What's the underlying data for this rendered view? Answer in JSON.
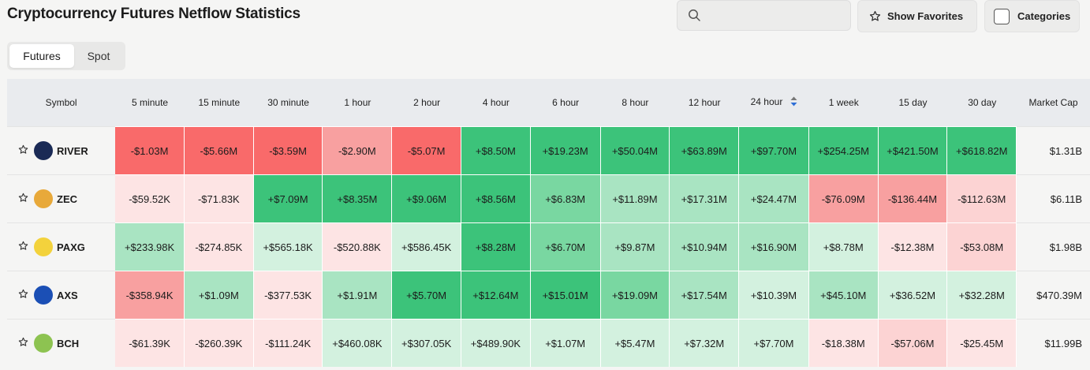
{
  "title": "Cryptocurrency Futures Netflow Statistics",
  "search": {
    "placeholder": ""
  },
  "buttons": {
    "favorites": "Show Favorites",
    "categories": "Categories"
  },
  "tabs": [
    {
      "label": "Futures"
    },
    {
      "label": "Spot"
    }
  ],
  "columns": [
    "Symbol",
    "5 minute",
    "15 minute",
    "30 minute",
    "1 hour",
    "2 hour",
    "4 hour",
    "6 hour",
    "8 hour",
    "12 hour",
    "24 hour",
    "1 week",
    "15 day",
    "30 day",
    "Market Cap"
  ],
  "rows": [
    {
      "symbol": "RIVER",
      "logo_color": "#1a2a55",
      "market_cap": "$1.31B",
      "values": [
        "-$1.03M",
        "-$5.66M",
        "-$3.59M",
        "-$2.90M",
        "-$5.07M",
        "+$8.50M",
        "+$19.23M",
        "+$50.04M",
        "+$63.89M",
        "+$97.70M",
        "+$254.25M",
        "+$421.50M",
        "+$618.82M"
      ],
      "tones": [
        "r1",
        "r1",
        "r1",
        "r2",
        "r1",
        "g1",
        "g1",
        "g1",
        "g1",
        "g1",
        "g1",
        "g1",
        "g1"
      ]
    },
    {
      "symbol": "ZEC",
      "logo_color": "#e8a93a",
      "market_cap": "$6.11B",
      "values": [
        "-$59.52K",
        "-$71.83K",
        "+$7.09M",
        "+$8.35M",
        "+$9.06M",
        "+$8.56M",
        "+$6.83M",
        "+$11.89M",
        "+$17.31M",
        "+$24.47M",
        "-$76.09M",
        "-$136.44M",
        "-$112.63M"
      ],
      "tones": [
        "r4",
        "r4",
        "g1",
        "g1",
        "g1",
        "g1",
        "g2",
        "g3",
        "g3",
        "g3",
        "r2",
        "r2",
        "r3"
      ]
    },
    {
      "symbol": "PAXG",
      "logo_color": "#f3d23c",
      "market_cap": "$1.98B",
      "values": [
        "+$233.98K",
        "-$274.85K",
        "+$565.18K",
        "-$520.88K",
        "+$586.45K",
        "+$8.28M",
        "+$6.70M",
        "+$9.87M",
        "+$10.94M",
        "+$16.90M",
        "+$8.78M",
        "-$12.38M",
        "-$53.08M"
      ],
      "tones": [
        "g3",
        "r4",
        "g4",
        "r4",
        "g4",
        "g1",
        "g2",
        "g3",
        "g3",
        "g3",
        "g4",
        "r4",
        "r3"
      ]
    },
    {
      "symbol": "AXS",
      "logo_color": "#1b4fb5",
      "market_cap": "$470.39M",
      "values": [
        "-$358.94K",
        "+$1.09M",
        "-$377.53K",
        "+$1.91M",
        "+$5.70M",
        "+$12.64M",
        "+$15.01M",
        "+$19.09M",
        "+$17.54M",
        "+$10.39M",
        "+$45.10M",
        "+$36.52M",
        "+$32.28M"
      ],
      "tones": [
        "r2",
        "g3",
        "r4",
        "g3",
        "g1",
        "g1",
        "g1",
        "g2",
        "g3",
        "g4",
        "g3",
        "g4",
        "g4"
      ]
    },
    {
      "symbol": "BCH",
      "logo_color": "#8dc351",
      "market_cap": "$11.99B",
      "values": [
        "-$61.39K",
        "-$260.39K",
        "-$111.24K",
        "+$460.08K",
        "+$307.05K",
        "+$489.90K",
        "+$1.07M",
        "+$5.47M",
        "+$7.32M",
        "+$7.70M",
        "-$18.38M",
        "-$57.06M",
        "-$25.45M"
      ],
      "tones": [
        "r4",
        "r4",
        "r4",
        "g4",
        "g4",
        "g4",
        "g4",
        "g4",
        "g4",
        "g4",
        "r4",
        "r3",
        "r4"
      ]
    }
  ]
}
